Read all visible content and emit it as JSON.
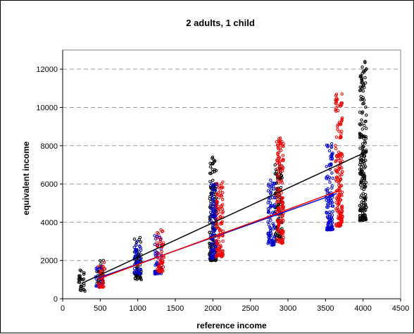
{
  "chart_data": {
    "type": "scatter",
    "title": "2 adults, 1 child",
    "xlabel": "reference income",
    "ylabel": "equivalent income",
    "xlim": [
      0,
      4500
    ],
    "ylim": [
      0,
      13000
    ],
    "xticks": [
      0,
      500,
      1000,
      1500,
      2000,
      2500,
      3000,
      3500,
      4000,
      4500
    ],
    "yticks": [
      0,
      2000,
      4000,
      6000,
      8000,
      10000,
      12000
    ],
    "grid": "horizontal dashed",
    "legend": "none",
    "series": [
      {
        "color": "#000000",
        "clusters": [
          {
            "x": 250,
            "min": 400,
            "max": 1500
          },
          {
            "x": 500,
            "min": 800,
            "max": 2000
          },
          {
            "x": 1000,
            "min": 1000,
            "max": 3200
          },
          {
            "x": 2000,
            "min": 2000,
            "max": 7400
          },
          {
            "x": 2875,
            "min": 3000,
            "max": 7000
          },
          {
            "x": 4000,
            "min": 4100,
            "max": 12400
          }
        ],
        "line": [
          [
            250,
            800
          ],
          [
            4000,
            7600
          ]
        ]
      },
      {
        "color": "#0000cc",
        "clusters": [
          {
            "x": 485,
            "min": 650,
            "max": 1700
          },
          {
            "x": 1000,
            "min": 1300,
            "max": 3000
          },
          {
            "x": 1270,
            "min": 1300,
            "max": 3300
          },
          {
            "x": 2015,
            "min": 2100,
            "max": 6000
          },
          {
            "x": 2780,
            "min": 2800,
            "max": 6200
          },
          {
            "x": 3555,
            "min": 3600,
            "max": 8100
          }
        ],
        "line": [
          [
            485,
            1100
          ],
          [
            3650,
            5500
          ]
        ]
      },
      {
        "color": "#ee0000",
        "clusters": [
          {
            "x": 520,
            "min": 600,
            "max": 1900
          },
          {
            "x": 1300,
            "min": 1400,
            "max": 3600
          },
          {
            "x": 2090,
            "min": 2200,
            "max": 6100
          },
          {
            "x": 2895,
            "min": 2900,
            "max": 8400
          },
          {
            "x": 3680,
            "min": 3800,
            "max": 10700
          }
        ],
        "line": [
          [
            520,
            1100
          ],
          [
            3680,
            5650
          ]
        ]
      }
    ]
  }
}
